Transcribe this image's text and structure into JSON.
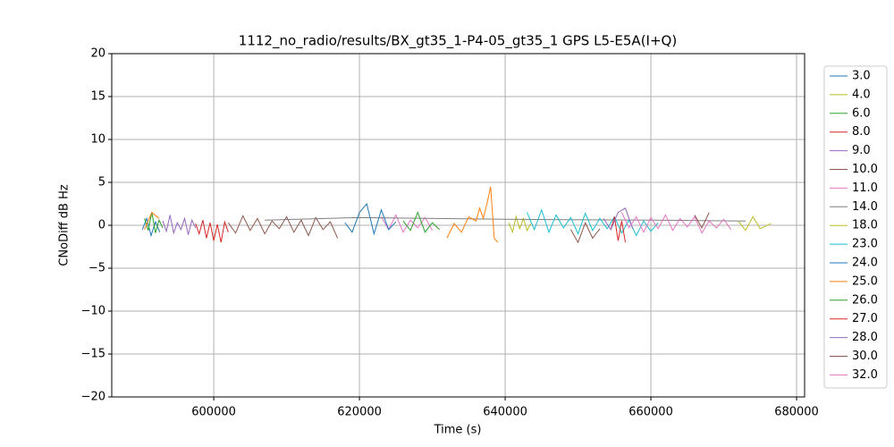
{
  "chart_data": {
    "type": "line",
    "title": "1112_no_radio/results/BX_gt35_1-P4-05_gt35_1 GPS L5-E5A(I+Q)",
    "x_label": "Time (s)",
    "y_label": "CNoDiff dB Hz",
    "xlim": [
      586000,
      681100
    ],
    "ylim": [
      -20,
      20
    ],
    "xticks": [
      600000,
      620000,
      640000,
      660000,
      680000
    ],
    "yticks": [
      {
        "value": -20,
        "label": "−20"
      },
      {
        "value": -15,
        "label": "−15"
      },
      {
        "value": -10,
        "label": "−10"
      },
      {
        "value": -5,
        "label": "−5"
      },
      0,
      5,
      10,
      15,
      20
    ],
    "grid": true,
    "legend": "outside-right",
    "series": [
      {
        "name": "3.0",
        "color": "#1f77b4",
        "x": [
          590200,
          590800,
          591400,
          592000,
          592600
        ],
        "values": [
          -0.5,
          0.8,
          -1.2,
          0.4,
          -0.8
        ]
      },
      {
        "name": "4.0",
        "color": "#bcbd22",
        "x": [
          640500,
          641000,
          641500,
          642000,
          642500,
          643000,
          643500
        ],
        "values": [
          0.3,
          -0.8,
          1.0,
          -0.4,
          0.8,
          -0.6,
          0.2
        ]
      },
      {
        "name": "6.0",
        "color": "#2ca02c",
        "x": [
          590500,
          591000,
          591500,
          592000,
          592500,
          593000
        ],
        "values": [
          0.8,
          -0.6,
          1.5,
          -0.9,
          0.6,
          -0.3
        ]
      },
      {
        "name": "8.0",
        "color": "#d62728",
        "x": [
          597500,
          598000,
          598500,
          599000,
          599500,
          600000,
          600500,
          601000,
          601500,
          602000
        ],
        "values": [
          0.2,
          -1.0,
          0.6,
          -1.5,
          0.3,
          -1.8,
          0.1,
          -2.0,
          0.4,
          -0.8
        ]
      },
      {
        "name": "9.0",
        "color": "#9467bd",
        "x": [
          593000,
          593500,
          594000,
          594500,
          595000,
          595500,
          596000,
          596500,
          597000,
          597500
        ],
        "values": [
          0.5,
          -0.7,
          1.2,
          -0.9,
          0.3,
          -0.5,
          0.8,
          -1.1,
          0.6,
          -0.3
        ]
      },
      {
        "name": "10.0",
        "color": "#8c564b",
        "x": [
          602000,
          603000,
          604000,
          605000,
          606000,
          607000,
          608000,
          609000,
          610000,
          611000,
          612000,
          613000,
          614000,
          615000,
          616000,
          617000
        ],
        "values": [
          0.3,
          -0.9,
          1.1,
          -0.6,
          0.8,
          -1.0,
          0.5,
          -0.4,
          1.0,
          -0.8,
          0.6,
          -1.2,
          0.9,
          -0.5,
          0.4,
          -1.5
        ]
      },
      {
        "name": "11.0",
        "color": "#e377c2",
        "x": [
          623000,
          624000,
          625000,
          626000,
          627000,
          628000,
          629000,
          630000
        ],
        "values": [
          1.0,
          -0.5,
          1.2,
          -0.8,
          0.6,
          -0.3,
          0.9,
          -0.6
        ]
      },
      {
        "name": "14.0",
        "color": "#7f7f7f",
        "x": [
          607000,
          620000,
          640000,
          660000,
          673000
        ],
        "values": [
          0.6,
          0.9,
          0.7,
          0.6,
          0.5
        ]
      },
      {
        "name": "18.0",
        "color": "#bcbd22",
        "x": [
          672000,
          673000,
          674000,
          675000,
          676500
        ],
        "values": [
          0.5,
          -0.6,
          1.0,
          -0.4,
          0.2
        ]
      },
      {
        "name": "23.0",
        "color": "#17becf",
        "x": [
          643000,
          644000,
          645000,
          646000,
          647000,
          648000,
          649000,
          650000,
          651000,
          652000,
          653000,
          654000,
          655000,
          656000,
          657000,
          658000,
          659000,
          660000,
          661000
        ],
        "values": [
          1.5,
          -0.5,
          1.8,
          -0.8,
          1.2,
          -0.3,
          0.9,
          -1.0,
          1.4,
          -0.6,
          0.8,
          -0.4,
          1.0,
          -0.9,
          0.6,
          -1.2,
          0.5,
          -0.7,
          0.3
        ]
      },
      {
        "name": "24.0",
        "color": "#1f77b4",
        "x": [
          618000,
          619000,
          620000,
          621000,
          622000,
          623000,
          624000,
          625000
        ],
        "values": [
          0.3,
          -0.8,
          1.5,
          2.5,
          -1.0,
          1.8,
          -0.5,
          0.4
        ]
      },
      {
        "name": "25.0",
        "color": "#ff7f0e",
        "x": [
          590500,
          591500,
          592500,
          611000,
          632000,
          633000,
          634000,
          635000,
          636000,
          636500,
          637000,
          637500,
          638000,
          638500,
          639000
        ],
        "values": [
          -0.5,
          1.5,
          0.8,
          null,
          -1.5,
          0.2,
          -0.8,
          1.0,
          0.5,
          2.0,
          0.8,
          2.5,
          4.5,
          -1.5,
          -2.0
        ]
      },
      {
        "name": "26.0",
        "color": "#2ca02c",
        "x": [
          626000,
          627000,
          628000,
          629000,
          630000,
          631000
        ],
        "values": [
          0.5,
          -0.6,
          1.5,
          -0.8,
          0.3,
          -0.5
        ]
      },
      {
        "name": "27.0",
        "color": "#d62728",
        "x": [
          654500,
          655000,
          655500,
          656000,
          656500
        ],
        "values": [
          -0.5,
          1.0,
          -1.8,
          0.5,
          -2.0
        ]
      },
      {
        "name": "28.0",
        "color": "#9467bd",
        "x": [
          653500,
          654500,
          655500,
          656500,
          657500
        ],
        "values": [
          0.8,
          -0.5,
          1.5,
          2.0,
          -0.4
        ]
      },
      {
        "name": "30.0",
        "color": "#8c564b",
        "x": [
          649000,
          650000,
          651000,
          652000,
          653000,
          659500,
          666000,
          667000,
          668000
        ],
        "values": [
          -0.5,
          -2.0,
          0.3,
          -1.5,
          -0.4,
          null,
          1.2,
          -0.3,
          1.5
        ]
      },
      {
        "name": "32.0",
        "color": "#e377c2",
        "x": [
          656000,
          657000,
          658000,
          659000,
          660000,
          661000,
          662000,
          663000,
          664000,
          665000,
          666000,
          667000,
          668000,
          669000,
          670000,
          671000
        ],
        "values": [
          1.5,
          -0.3,
          1.0,
          -0.8,
          0.9,
          -0.4,
          1.2,
          -0.6,
          0.8,
          -0.2,
          1.0,
          -0.9,
          0.5,
          -0.3,
          0.7,
          -0.5
        ]
      }
    ]
  }
}
